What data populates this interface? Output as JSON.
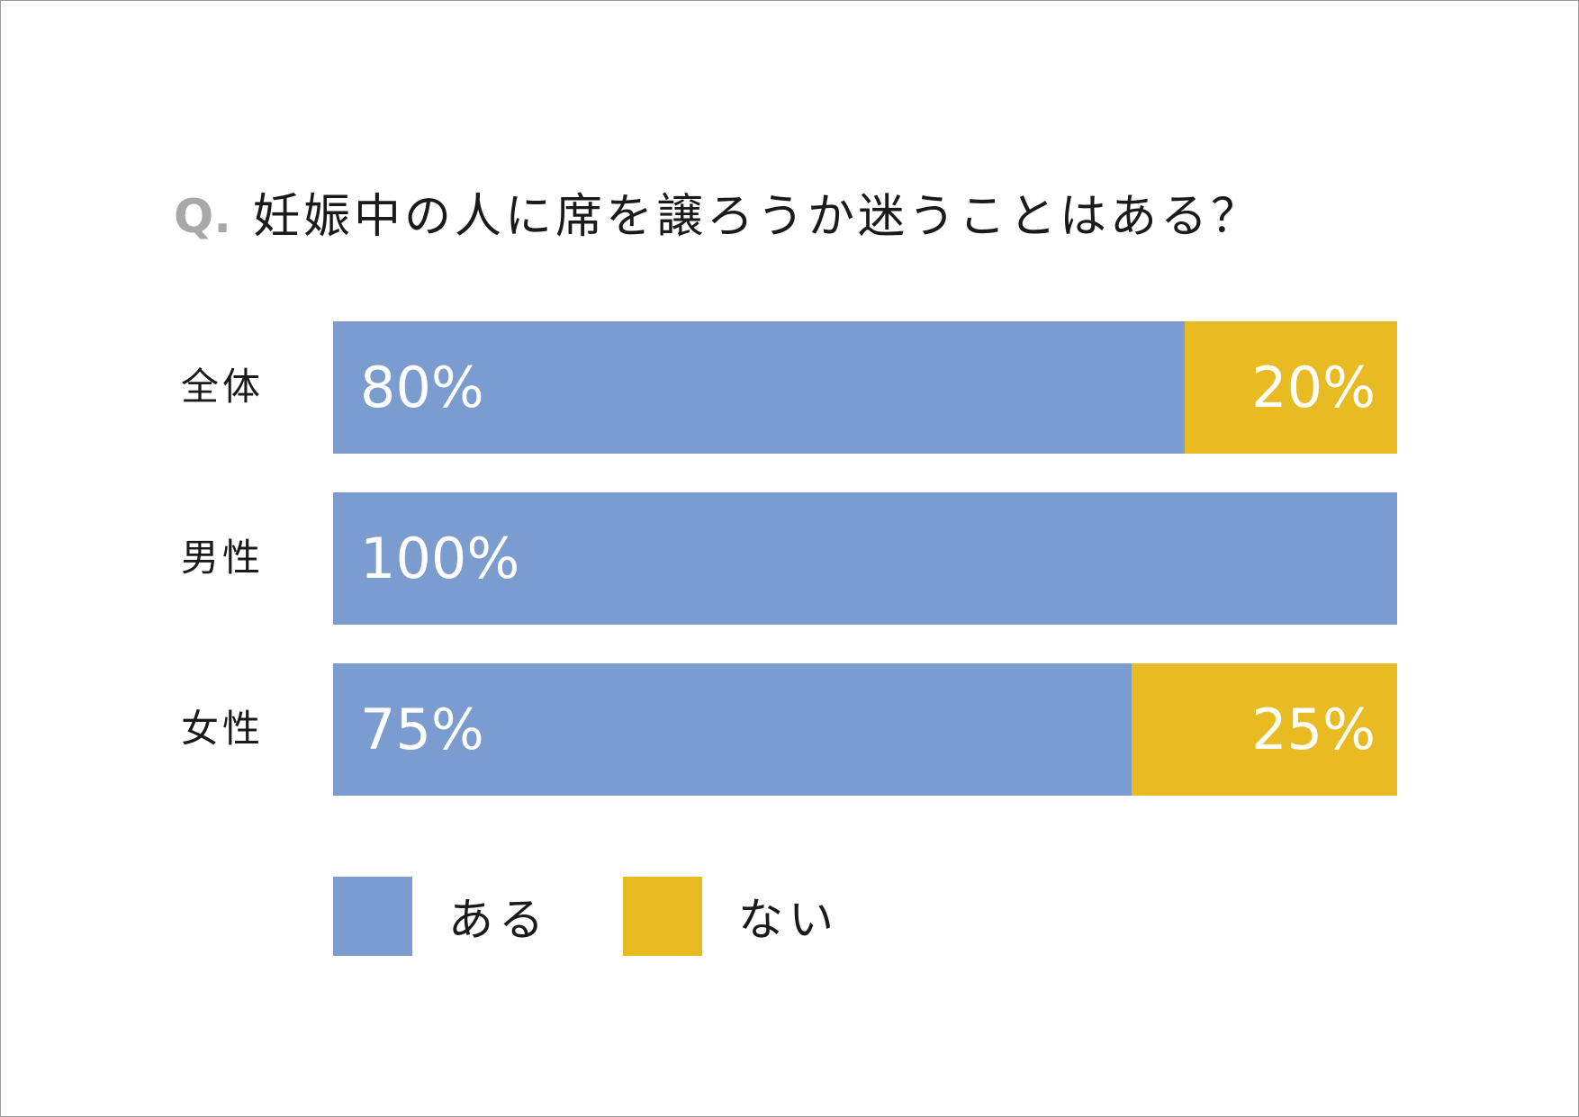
{
  "colors": {
    "aru": "#7a9ccf",
    "nai": "#e8bb22",
    "title_q": "#a8a8a8"
  },
  "chart_data": {
    "type": "bar",
    "orientation": "horizontal",
    "stacked": true,
    "title_prefix": "Q.",
    "title": "妊娠中の人に席を譲ろうか迷うことはある？",
    "categories": [
      "全体",
      "男性",
      "女性"
    ],
    "series": [
      {
        "name": "ある",
        "values": [
          80,
          100,
          75
        ],
        "labels": [
          "80%",
          "100%",
          "75%"
        ]
      },
      {
        "name": "ない",
        "values": [
          20,
          0,
          25
        ],
        "labels": [
          "20%",
          "",
          "25%"
        ]
      }
    ],
    "xlim": [
      0,
      100
    ],
    "grid": false,
    "legend_placement": "bottom-left"
  }
}
